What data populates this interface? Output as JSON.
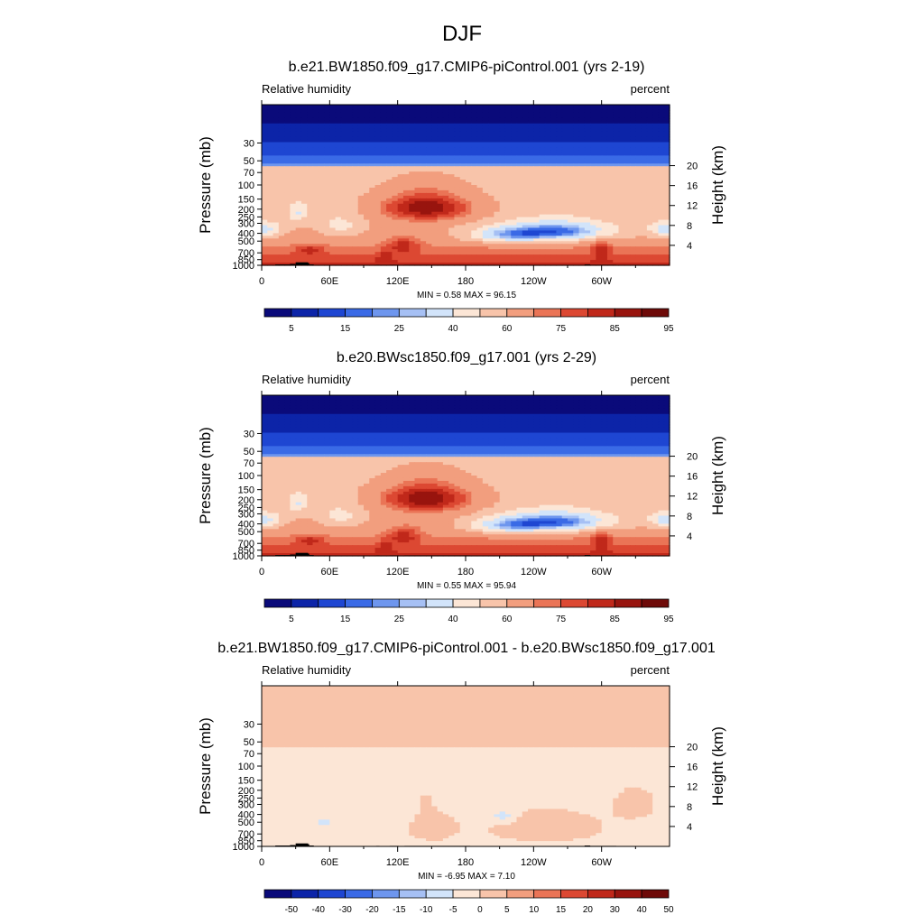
{
  "figure": {
    "title": "DJF"
  },
  "colors": {
    "abs": [
      "#0a0a7a",
      "#0c24a8",
      "#1e46d2",
      "#3a6ae6",
      "#6e96ee",
      "#a6c0f4",
      "#d2e4fa",
      "#fce6d6",
      "#f8c4aa",
      "#f29e7e",
      "#ea7456",
      "#dc4832",
      "#c0281a",
      "#98140e",
      "#6e0a08"
    ],
    "diff": [
      "#0a0a7a",
      "#0c24a8",
      "#1e46d2",
      "#3a6ae6",
      "#6e96ee",
      "#a6c0f4",
      "#d2e4fa",
      "#fce6d6",
      "#f8c4aa",
      "#f29e7e",
      "#ea7456",
      "#dc4832",
      "#c0281a",
      "#98140e",
      "#6e0a08"
    ],
    "topography": "#000000"
  },
  "chart_data": [
    {
      "type": "heatmap",
      "title": "b.e21.BW1850.f09_g17.CMIP6-piControl.001 (yrs 2-19)",
      "left_label": "Relative humidity",
      "right_label": "percent",
      "ylabel": "Pressure (mb)",
      "ylabel_right": "Height (km)",
      "xticks": [
        "0",
        "60E",
        "120E",
        "180",
        "120W",
        "60W"
      ],
      "xtick_values": [
        0,
        60,
        120,
        180,
        240,
        300
      ],
      "xlim": [
        0,
        360
      ],
      "yticks": [
        "30",
        "50",
        "70",
        "100",
        "150",
        "200",
        "250",
        "300",
        "400",
        "500",
        "700",
        "850",
        "1000"
      ],
      "ytick_values": [
        30,
        50,
        70,
        100,
        150,
        200,
        250,
        300,
        400,
        500,
        700,
        850,
        1000
      ],
      "ylim": [
        10,
        1000
      ],
      "height_ticks": [
        "20",
        "16",
        "12",
        "8",
        "4"
      ],
      "height_values": [
        20,
        16,
        12,
        8,
        4
      ],
      "stats": "MIN =   0.58  MAX =  96.15",
      "min": 0.58,
      "max": 96.15,
      "colorbar_ticks": [
        "5",
        "15",
        "25",
        "40",
        "60",
        "75",
        "85",
        "95"
      ],
      "field": "abs",
      "variant": 0,
      "colorset": "abs"
    },
    {
      "type": "heatmap",
      "title": "b.e20.BWsc1850.f09_g17.001 (yrs 2-29)",
      "left_label": "Relative humidity",
      "right_label": "percent",
      "ylabel": "Pressure (mb)",
      "ylabel_right": "Height (km)",
      "xticks": [
        "0",
        "60E",
        "120E",
        "180",
        "120W",
        "60W"
      ],
      "xtick_values": [
        0,
        60,
        120,
        180,
        240,
        300
      ],
      "xlim": [
        0,
        360
      ],
      "yticks": [
        "30",
        "50",
        "70",
        "100",
        "150",
        "200",
        "250",
        "300",
        "400",
        "500",
        "700",
        "850",
        "1000"
      ],
      "ytick_values": [
        30,
        50,
        70,
        100,
        150,
        200,
        250,
        300,
        400,
        500,
        700,
        850,
        1000
      ],
      "ylim": [
        10,
        1000
      ],
      "height_ticks": [
        "20",
        "16",
        "12",
        "8",
        "4"
      ],
      "height_values": [
        20,
        16,
        12,
        8,
        4
      ],
      "stats": "MIN =   0.55  MAX =  95.94",
      "min": 0.55,
      "max": 95.94,
      "colorbar_ticks": [
        "5",
        "15",
        "25",
        "40",
        "60",
        "75",
        "85",
        "95"
      ],
      "field": "abs",
      "variant": 1,
      "colorset": "abs"
    },
    {
      "type": "heatmap",
      "title": "b.e21.BW1850.f09_g17.CMIP6-piControl.001 - b.e20.BWsc1850.f09_g17.001",
      "left_label": "Relative humidity",
      "right_label": "percent",
      "ylabel": "Pressure (mb)",
      "ylabel_right": "Height (km)",
      "xticks": [
        "0",
        "60E",
        "120E",
        "180",
        "120W",
        "60W"
      ],
      "xtick_values": [
        0,
        60,
        120,
        180,
        240,
        300
      ],
      "xlim": [
        0,
        360
      ],
      "yticks": [
        "30",
        "50",
        "70",
        "100",
        "150",
        "200",
        "250",
        "300",
        "400",
        "500",
        "700",
        "850",
        "1000"
      ],
      "ytick_values": [
        30,
        50,
        70,
        100,
        150,
        200,
        250,
        300,
        400,
        500,
        700,
        850,
        1000
      ],
      "ylim": [
        10,
        1000
      ],
      "height_ticks": [
        "20",
        "16",
        "12",
        "8",
        "4"
      ],
      "height_values": [
        20,
        16,
        12,
        8,
        4
      ],
      "stats": "MIN =  -6.95  MAX =   7.10",
      "min": -6.95,
      "max": 7.1,
      "colorbar_ticks": [
        "-50",
        "-40",
        "-30",
        "-20",
        "-15",
        "-10",
        "-5",
        "0",
        "5",
        "10",
        "15",
        "20",
        "30",
        "40",
        "50"
      ],
      "field": "diff",
      "variant": 0,
      "colorset": "diff"
    }
  ]
}
